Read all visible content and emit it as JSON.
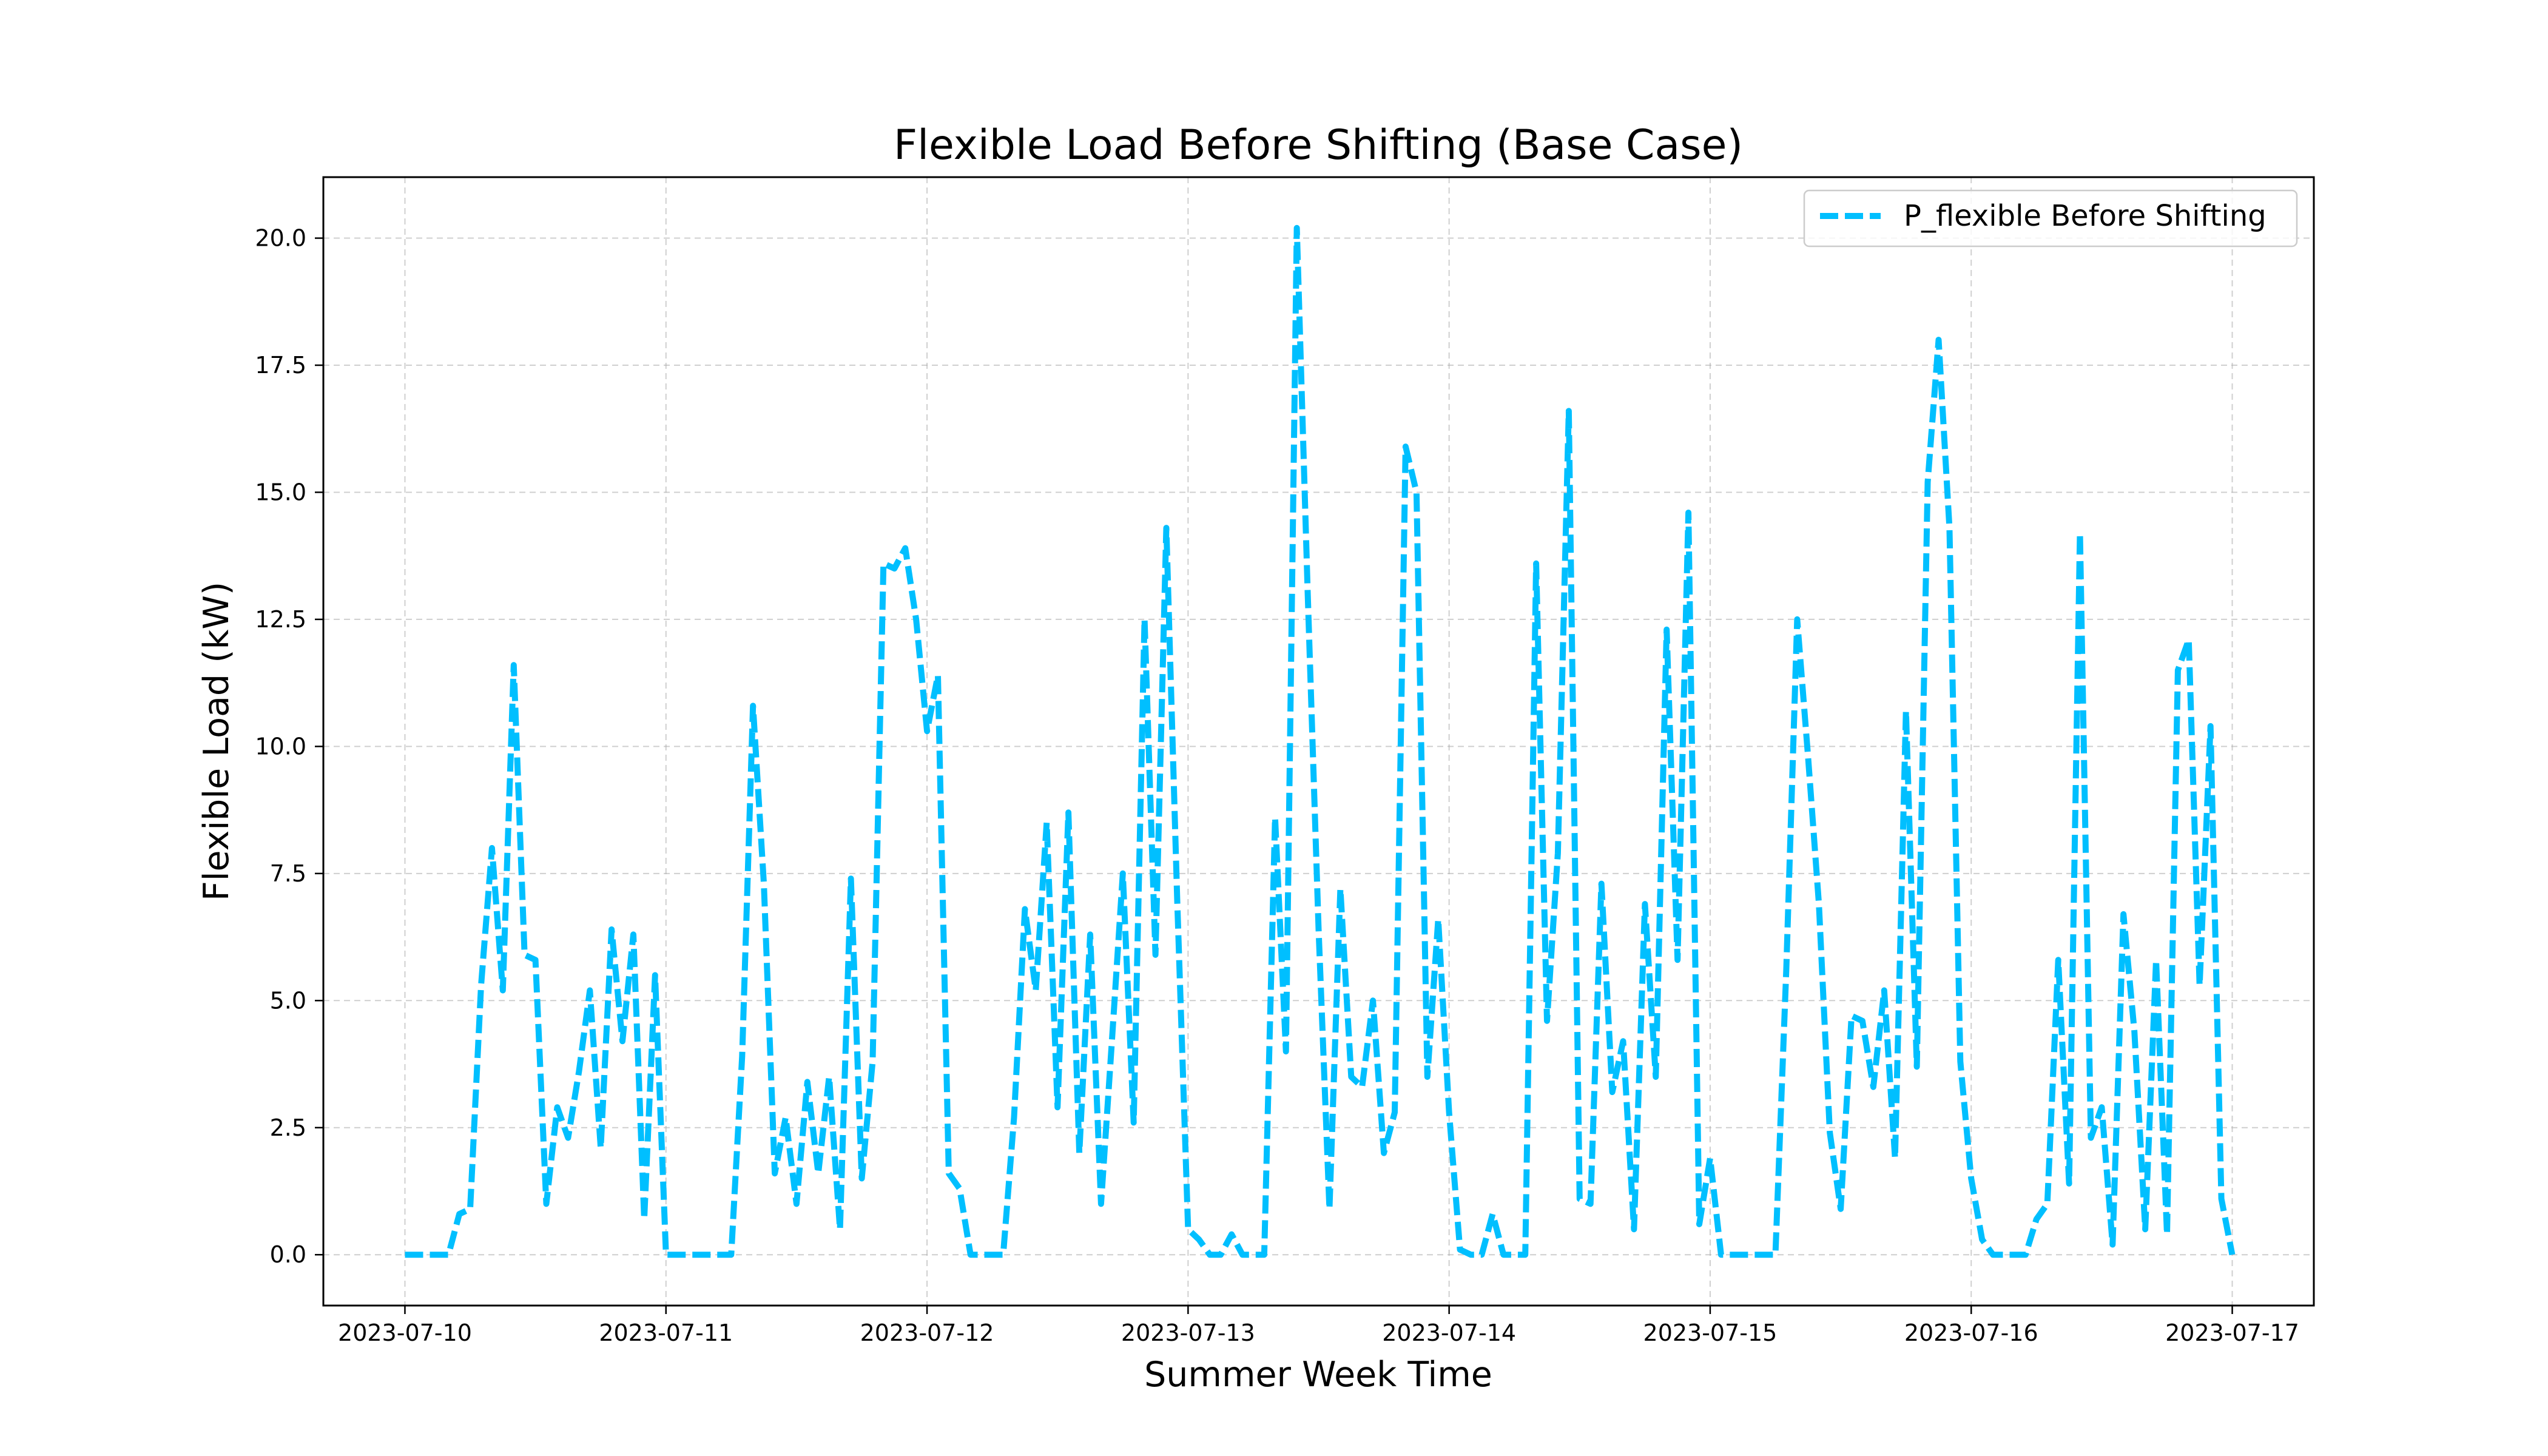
{
  "chart_data": {
    "type": "line",
    "title": "Flexible Load Before Shifting (Base Case)",
    "xlabel": "Summer Week Time",
    "ylabel": "Flexible Load (kW)",
    "xlim": [
      "2023-07-09T16:30",
      "2023-07-17T07:30"
    ],
    "ylim": [
      -1.0,
      21.2
    ],
    "x_tick_labels": [
      "2023-07-10",
      "2023-07-11",
      "2023-07-12",
      "2023-07-13",
      "2023-07-14",
      "2023-07-15",
      "2023-07-16",
      "2023-07-17"
    ],
    "y_tick_labels": [
      "0.0",
      "2.5",
      "5.0",
      "7.5",
      "10.0",
      "12.5",
      "15.0",
      "17.5",
      "20.0"
    ],
    "grid": true,
    "legend_position": "top-right",
    "series": [
      {
        "name": "P_flexible Before Shifting",
        "color": "#00bfff",
        "style": "dashed",
        "x": [
          "2023-07-10T00:00",
          "2023-07-10T01:00",
          "2023-07-10T02:00",
          "2023-07-10T03:00",
          "2023-07-10T04:00",
          "2023-07-10T05:00",
          "2023-07-10T06:00",
          "2023-07-10T07:00",
          "2023-07-10T08:00",
          "2023-07-10T09:00",
          "2023-07-10T10:00",
          "2023-07-10T11:00",
          "2023-07-10T12:00",
          "2023-07-10T13:00",
          "2023-07-10T14:00",
          "2023-07-10T15:00",
          "2023-07-10T16:00",
          "2023-07-10T17:00",
          "2023-07-10T18:00",
          "2023-07-10T19:00",
          "2023-07-10T20:00",
          "2023-07-10T21:00",
          "2023-07-10T22:00",
          "2023-07-10T23:00",
          "2023-07-11T00:00",
          "2023-07-11T01:00",
          "2023-07-11T02:00",
          "2023-07-11T03:00",
          "2023-07-11T04:00",
          "2023-07-11T05:00",
          "2023-07-11T06:00",
          "2023-07-11T07:00",
          "2023-07-11T08:00",
          "2023-07-11T09:00",
          "2023-07-11T10:00",
          "2023-07-11T11:00",
          "2023-07-11T12:00",
          "2023-07-11T13:00",
          "2023-07-11T14:00",
          "2023-07-11T15:00",
          "2023-07-11T16:00",
          "2023-07-11T17:00",
          "2023-07-11T18:00",
          "2023-07-11T19:00",
          "2023-07-11T20:00",
          "2023-07-11T21:00",
          "2023-07-11T22:00",
          "2023-07-11T23:00",
          "2023-07-12T00:00",
          "2023-07-12T01:00",
          "2023-07-12T02:00",
          "2023-07-12T03:00",
          "2023-07-12T04:00",
          "2023-07-12T05:00",
          "2023-07-12T06:00",
          "2023-07-12T07:00",
          "2023-07-12T08:00",
          "2023-07-12T09:00",
          "2023-07-12T10:00",
          "2023-07-12T11:00",
          "2023-07-12T12:00",
          "2023-07-12T13:00",
          "2023-07-12T14:00",
          "2023-07-12T15:00",
          "2023-07-12T16:00",
          "2023-07-12T17:00",
          "2023-07-12T18:00",
          "2023-07-12T19:00",
          "2023-07-12T20:00",
          "2023-07-12T21:00",
          "2023-07-12T22:00",
          "2023-07-12T23:00",
          "2023-07-13T00:00",
          "2023-07-13T01:00",
          "2023-07-13T02:00",
          "2023-07-13T03:00",
          "2023-07-13T04:00",
          "2023-07-13T05:00",
          "2023-07-13T06:00",
          "2023-07-13T07:00",
          "2023-07-13T08:00",
          "2023-07-13T09:00",
          "2023-07-13T10:00",
          "2023-07-13T11:00",
          "2023-07-13T12:00",
          "2023-07-13T13:00",
          "2023-07-13T14:00",
          "2023-07-13T15:00",
          "2023-07-13T16:00",
          "2023-07-13T17:00",
          "2023-07-13T18:00",
          "2023-07-13T19:00",
          "2023-07-13T20:00",
          "2023-07-13T21:00",
          "2023-07-13T22:00",
          "2023-07-13T23:00",
          "2023-07-14T00:00",
          "2023-07-14T01:00",
          "2023-07-14T02:00",
          "2023-07-14T03:00",
          "2023-07-14T04:00",
          "2023-07-14T05:00",
          "2023-07-14T06:00",
          "2023-07-14T07:00",
          "2023-07-14T08:00",
          "2023-07-14T09:00",
          "2023-07-14T10:00",
          "2023-07-14T11:00",
          "2023-07-14T12:00",
          "2023-07-14T13:00",
          "2023-07-14T14:00",
          "2023-07-14T15:00",
          "2023-07-14T16:00",
          "2023-07-14T17:00",
          "2023-07-14T18:00",
          "2023-07-14T19:00",
          "2023-07-14T20:00",
          "2023-07-14T21:00",
          "2023-07-14T22:00",
          "2023-07-14T23:00",
          "2023-07-15T00:00",
          "2023-07-15T01:00",
          "2023-07-15T02:00",
          "2023-07-15T03:00",
          "2023-07-15T04:00",
          "2023-07-15T05:00",
          "2023-07-15T06:00",
          "2023-07-15T07:00",
          "2023-07-15T08:00",
          "2023-07-15T09:00",
          "2023-07-15T10:00",
          "2023-07-15T11:00",
          "2023-07-15T12:00",
          "2023-07-15T13:00",
          "2023-07-15T14:00",
          "2023-07-15T15:00",
          "2023-07-15T16:00",
          "2023-07-15T17:00",
          "2023-07-15T18:00",
          "2023-07-15T19:00",
          "2023-07-15T20:00",
          "2023-07-15T21:00",
          "2023-07-15T22:00",
          "2023-07-15T23:00",
          "2023-07-16T00:00",
          "2023-07-16T01:00",
          "2023-07-16T02:00",
          "2023-07-16T03:00",
          "2023-07-16T04:00",
          "2023-07-16T05:00",
          "2023-07-16T06:00",
          "2023-07-16T07:00",
          "2023-07-16T08:00",
          "2023-07-16T09:00",
          "2023-07-16T10:00",
          "2023-07-16T11:00",
          "2023-07-16T12:00",
          "2023-07-16T13:00",
          "2023-07-16T14:00",
          "2023-07-16T15:00",
          "2023-07-16T16:00",
          "2023-07-16T17:00",
          "2023-07-16T18:00",
          "2023-07-16T19:00",
          "2023-07-16T20:00",
          "2023-07-16T21:00",
          "2023-07-16T22:00",
          "2023-07-16T23:00",
          "2023-07-17T00:00"
        ],
        "values": [
          0.0,
          0.0,
          0.0,
          0.0,
          0.0,
          0.8,
          0.9,
          5.3,
          8.0,
          5.2,
          11.6,
          5.9,
          5.8,
          1.0,
          2.9,
          2.3,
          3.6,
          5.2,
          2.1,
          6.4,
          4.2,
          6.3,
          0.7,
          5.5,
          0.0,
          0.0,
          0.0,
          0.0,
          0.0,
          0.0,
          0.0,
          3.9,
          10.8,
          7.3,
          1.6,
          2.7,
          1.0,
          3.4,
          1.6,
          3.5,
          0.5,
          7.4,
          1.5,
          3.8,
          13.6,
          13.5,
          13.9,
          12.5,
          10.3,
          11.4,
          1.6,
          1.3,
          0.0,
          0.0,
          0.0,
          0.0,
          2.7,
          6.8,
          5.2,
          8.5,
          2.9,
          8.7,
          2.0,
          6.3,
          1.0,
          4.2,
          7.5,
          2.6,
          12.5,
          5.9,
          14.3,
          7.0,
          0.5,
          0.3,
          0.0,
          0.0,
          0.4,
          0.0,
          0.0,
          0.0,
          8.6,
          4.0,
          20.2,
          13.0,
          6.4,
          0.9,
          7.2,
          3.5,
          3.3,
          5.0,
          2.0,
          2.8,
          15.9,
          15.0,
          3.5,
          6.6,
          2.8,
          0.1,
          0.0,
          0.0,
          0.8,
          0.0,
          0.0,
          0.0,
          13.6,
          4.6,
          7.9,
          16.6,
          1.1,
          1.0,
          7.3,
          3.2,
          4.2,
          0.5,
          6.9,
          3.5,
          12.3,
          5.8,
          14.6,
          0.6,
          1.9,
          0.0,
          0.0,
          0.0,
          0.0,
          0.0,
          0.0,
          5.6,
          12.5,
          9.8,
          6.9,
          2.4,
          0.9,
          4.7,
          4.6,
          3.3,
          5.2,
          1.9,
          10.7,
          3.7,
          15.2,
          18.0,
          14.3,
          3.8,
          1.5,
          0.3,
          0.0,
          0.0,
          0.0,
          0.0,
          0.7,
          1.0,
          5.8,
          1.4,
          14.2,
          2.3,
          2.9,
          0.2,
          6.7,
          4.4,
          0.5,
          5.8,
          0.4,
          11.5,
          12.1,
          5.3,
          10.4,
          1.1,
          0.0
        ]
      }
    ]
  }
}
